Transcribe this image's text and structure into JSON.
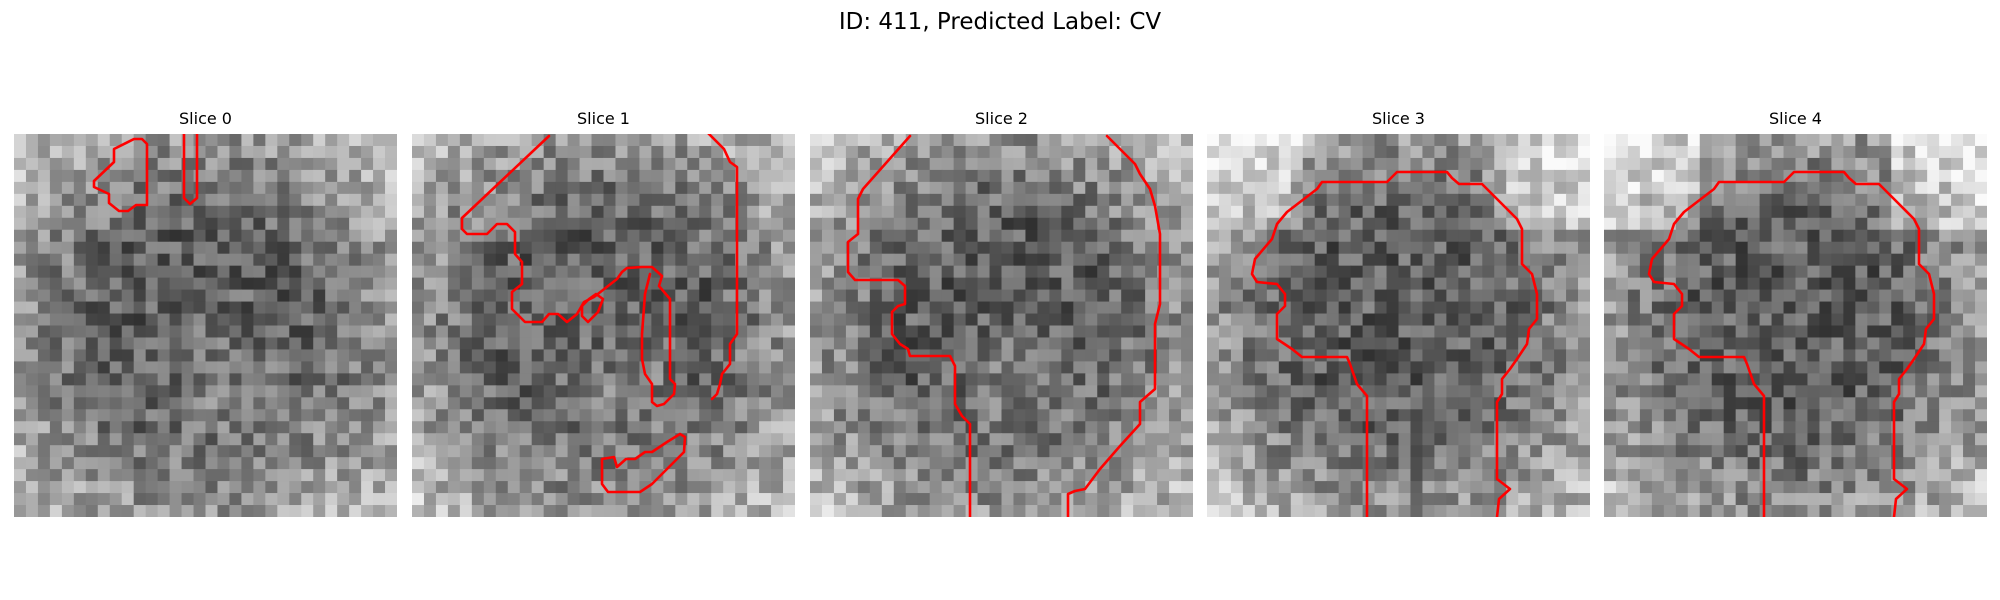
{
  "figure": {
    "title": "ID: 411, Predicted Label: CV"
  },
  "slices": [
    {
      "title": "Slice 0"
    },
    {
      "title": "Slice 1"
    },
    {
      "title": "Slice 2"
    },
    {
      "title": "Slice 3"
    },
    {
      "title": "Slice 4"
    }
  ],
  "colors": {
    "contour": "#ff0000",
    "background": "#ffffff"
  }
}
